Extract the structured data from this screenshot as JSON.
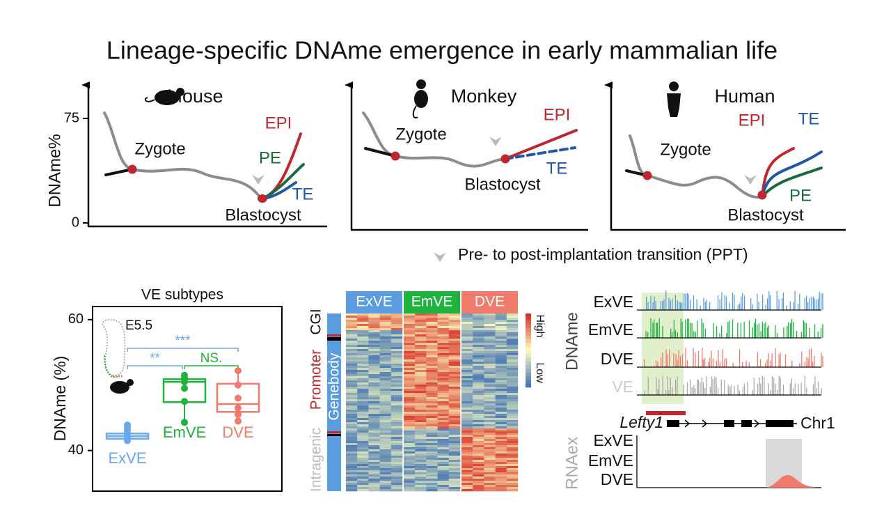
{
  "title": "Lineage-specific DNAme emergence in early mammalian life",
  "dev_axis": {
    "label": "DNAme%",
    "ylim": [
      -2.5,
      100
    ],
    "ticks": [
      75,
      0
    ]
  },
  "panels": [
    {
      "species": "Mouse",
      "zygote": "Zygote",
      "blastocyst": "Blastocyst",
      "lineages": {
        "epi": "EPI",
        "pe": "PE",
        "te": "TE"
      }
    },
    {
      "species": "Monkey",
      "zygote": "Zygote",
      "blastocyst": "Blastocyst",
      "lineages": {
        "epi": "EPI",
        "te": "TE"
      }
    },
    {
      "species": "Human",
      "zygote": "Zygote",
      "blastocyst": "Blastocyst",
      "lineages": {
        "epi": "EPI",
        "te": "TE",
        "pe": "PE"
      }
    }
  ],
  "legend": "Pre- to post-implantation transition (PPT)",
  "boxplot": {
    "title": "VE subtypes",
    "y_label": "DNAme (%)",
    "ylim": [
      33.8,
      62
    ],
    "yticks": [
      60,
      40
    ],
    "stage": "E5.5",
    "significance": {
      "exve_dve": "***",
      "exve_emve": "**",
      "emve_dve": "NS."
    },
    "groups": [
      {
        "name": "ExVE",
        "color": "#6aa7ef",
        "whisker_low": 41.3,
        "q1": 41.8,
        "median": 42.2,
        "q3": 42.6,
        "whisker_high": 43.9,
        "points": [
          43.9,
          43.5,
          43.1,
          42.6,
          42.2,
          41.8,
          41.5
        ]
      },
      {
        "name": "EmVE",
        "color": "#1db33c",
        "whisker_low": 44.3,
        "q1": 47.4,
        "median": 50.5,
        "q3": 50.9,
        "whisker_high": 51.5,
        "points": [
          51.5,
          51.0,
          50.5,
          49.5,
          47.5,
          44.3
        ]
      },
      {
        "name": "DVE",
        "color": "#f07b6b",
        "whisker_low": 44.5,
        "q1": 45.9,
        "median": 47.1,
        "q3": 50.2,
        "whisker_high": 52.2,
        "points": [
          52.2,
          50.0,
          48.0,
          46.5,
          45.5,
          44.5
        ]
      }
    ]
  },
  "heatmap": {
    "columns": [
      "ExVE",
      "EmVE",
      "DVE"
    ],
    "rows": {
      "cgi": "CGI",
      "promoter": "Promoter",
      "genebody": "Genebody",
      "intragenic": "Intragenic"
    },
    "scale": {
      "high": "High",
      "low": "Low"
    }
  },
  "tracks": {
    "dnam_label": "DNAme",
    "dnam_tracks": [
      "ExVE",
      "EmVE",
      "DVE",
      "VE"
    ],
    "gene": "Lefty1",
    "chrom": "Chr1",
    "rna_label": "RNAex",
    "rna_tracks": [
      "ExVE",
      "EmVE",
      "DVE"
    ]
  }
}
